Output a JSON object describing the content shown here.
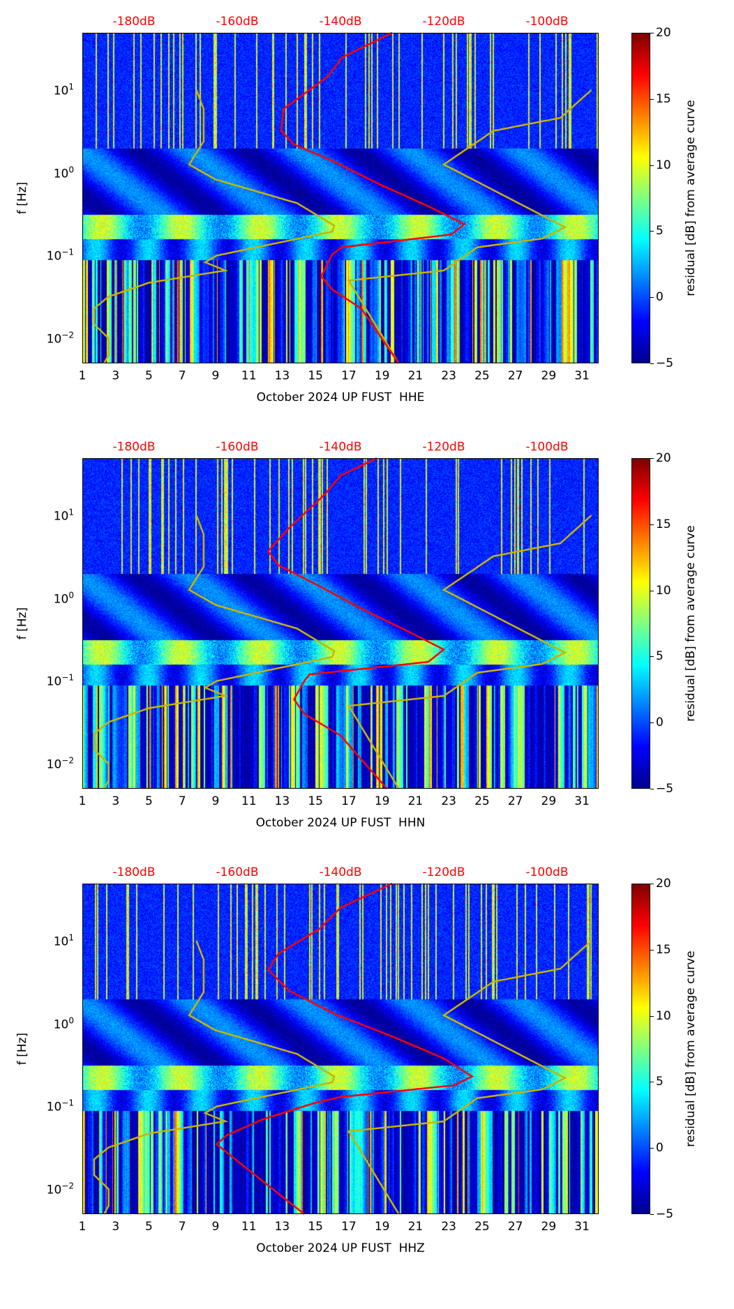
{
  "colors": {
    "mean_psd": "#ff0000",
    "noise_models": "#c8b400",
    "top_axis": "#ff0000"
  },
  "shared": {
    "ylabel": "f [Hz]",
    "colorbar_label": "residual [dB] from average curve",
    "colorbar_ticks": [
      "20",
      "15",
      "10",
      "5",
      "0",
      "−5"
    ],
    "colorbar_range": [
      -5,
      20
    ],
    "x_ticks": [
      "1",
      "3",
      "5",
      "7",
      "9",
      "11",
      "13",
      "15",
      "17",
      "19",
      "21",
      "23",
      "25",
      "27",
      "29",
      "31"
    ],
    "y_ticks": [
      {
        "base": "10",
        "exp": "1"
      },
      {
        "base": "10",
        "exp": "0"
      },
      {
        "base": "10",
        "exp": "−1"
      },
      {
        "base": "10",
        "exp": "−2"
      }
    ],
    "top_ticks": [
      "-180dB",
      "-160dB",
      "-140dB",
      "-120dB",
      "-100dB"
    ]
  },
  "chart_data": [
    {
      "type": "heatmap",
      "title": "",
      "xlabel": "October 2024 UP FUST  HHE",
      "ylabel": "f [Hz]",
      "x_range_days": [
        1,
        32
      ],
      "y_range_hz": [
        0.005,
        49
      ],
      "y_scale": "log",
      "top_axis_db_range": [
        -190,
        -90
      ],
      "mean_psd": [
        [
          -130,
          49
        ],
        [
          -139.7,
          24.6
        ],
        [
          -142.5,
          14.5
        ],
        [
          -151,
          5.9
        ],
        [
          -151.5,
          3.2
        ],
        [
          -149,
          2.2
        ],
        [
          -141.6,
          1.4
        ],
        [
          -132.3,
          0.72
        ],
        [
          -123.2,
          0.4
        ],
        [
          -116,
          0.24
        ],
        [
          -118.5,
          0.18
        ],
        [
          -139.7,
          0.126
        ],
        [
          -141.6,
          0.104
        ],
        [
          -143.7,
          0.056
        ],
        [
          -141.6,
          0.039
        ],
        [
          -136,
          0.023
        ],
        [
          -128.7,
          0.005
        ]
      ],
      "nlnm": [
        [
          -167.9,
          10
        ],
        [
          -166.5,
          5.9
        ],
        [
          -166.5,
          2.4
        ],
        [
          -169.3,
          1.26
        ],
        [
          -164.2,
          0.83
        ],
        [
          -148.4,
          0.43
        ],
        [
          -141.2,
          0.23
        ],
        [
          -141.6,
          0.195
        ],
        [
          -164,
          0.1
        ],
        [
          -166.2,
          0.083
        ],
        [
          -162.3,
          0.066
        ],
        [
          -177.1,
          0.047
        ],
        [
          -184.9,
          0.032
        ],
        [
          -187.7,
          0.023
        ],
        [
          -187.7,
          0.0148
        ],
        [
          -184.9,
          0.01
        ],
        [
          -184.9,
          0.0063
        ],
        [
          -185.8,
          0.005
        ]
      ],
      "nhnm": [
        [
          -91.4,
          10
        ],
        [
          -97.4,
          4.6
        ],
        [
          -110.4,
          3.2
        ],
        [
          -120,
          1.26
        ],
        [
          -96.5,
          0.22
        ],
        [
          -101,
          0.16
        ],
        [
          -113.5,
          0.126
        ],
        [
          -120,
          0.066
        ],
        [
          -138.4,
          0.05
        ],
        [
          -128.7,
          0.005
        ]
      ]
    },
    {
      "type": "heatmap",
      "title": "",
      "xlabel": "October 2024 UP FUST  HHN",
      "ylabel": "f [Hz]",
      "x_range_days": [
        1,
        32
      ],
      "y_range_hz": [
        0.005,
        49
      ],
      "y_scale": "log",
      "top_axis_db_range": [
        -190,
        -90
      ],
      "mean_psd": [
        [
          -133,
          49
        ],
        [
          -140,
          30
        ],
        [
          -143,
          18
        ],
        [
          -150,
          7
        ],
        [
          -154,
          3.7
        ],
        [
          -152,
          2.5
        ],
        [
          -145,
          1.5
        ],
        [
          -136,
          0.75
        ],
        [
          -127,
          0.4
        ],
        [
          -120,
          0.24
        ],
        [
          -123,
          0.17
        ],
        [
          -146,
          0.12
        ],
        [
          -147,
          0.1
        ],
        [
          -149,
          0.06
        ],
        [
          -147,
          0.04
        ],
        [
          -140,
          0.022
        ],
        [
          -131,
          0.005
        ]
      ],
      "nlnm": [
        [
          -167.9,
          10
        ],
        [
          -166.5,
          5.9
        ],
        [
          -166.5,
          2.4
        ],
        [
          -169.3,
          1.26
        ],
        [
          -164.2,
          0.83
        ],
        [
          -148.4,
          0.43
        ],
        [
          -141.2,
          0.23
        ],
        [
          -141.6,
          0.195
        ],
        [
          -164,
          0.1
        ],
        [
          -166.2,
          0.083
        ],
        [
          -162.3,
          0.066
        ],
        [
          -177.1,
          0.047
        ],
        [
          -184.9,
          0.032
        ],
        [
          -187.7,
          0.023
        ],
        [
          -187.7,
          0.0148
        ],
        [
          -184.9,
          0.01
        ],
        [
          -184.9,
          0.0063
        ],
        [
          -185.8,
          0.005
        ]
      ],
      "nhnm": [
        [
          -91.4,
          10
        ],
        [
          -97.4,
          4.6
        ],
        [
          -110.4,
          3.2
        ],
        [
          -120,
          1.26
        ],
        [
          -96.5,
          0.22
        ],
        [
          -101,
          0.16
        ],
        [
          -113.5,
          0.126
        ],
        [
          -120,
          0.066
        ],
        [
          -138.4,
          0.05
        ],
        [
          -128.7,
          0.005
        ]
      ]
    },
    {
      "type": "heatmap",
      "title": "",
      "xlabel": "October 2024 UP FUST  HHZ",
      "ylabel": "f [Hz]",
      "x_range_days": [
        1,
        32
      ],
      "y_range_hz": [
        0.005,
        49
      ],
      "y_scale": "log",
      "top_axis_db_range": [
        -190,
        -90
      ],
      "mean_psd": [
        [
          -130,
          49
        ],
        [
          -140,
          25
        ],
        [
          -144,
          14
        ],
        [
          -152,
          7
        ],
        [
          -154,
          4.5
        ],
        [
          -150,
          2.5
        ],
        [
          -141,
          1.3
        ],
        [
          -130,
          0.7
        ],
        [
          -120,
          0.38
        ],
        [
          -114.5,
          0.23
        ],
        [
          -118,
          0.18
        ],
        [
          -140,
          0.13
        ],
        [
          -145,
          0.11
        ],
        [
          -155,
          0.07
        ],
        [
          -162,
          0.045
        ],
        [
          -164,
          0.035
        ],
        [
          -160,
          0.022
        ],
        [
          -147,
          0.005
        ]
      ],
      "nlnm": [
        [
          -167.9,
          10
        ],
        [
          -166.5,
          5.9
        ],
        [
          -166.5,
          2.4
        ],
        [
          -169.3,
          1.26
        ],
        [
          -164.2,
          0.83
        ],
        [
          -148.4,
          0.43
        ],
        [
          -141.2,
          0.23
        ],
        [
          -141.6,
          0.195
        ],
        [
          -164,
          0.1
        ],
        [
          -166.2,
          0.083
        ],
        [
          -162.3,
          0.066
        ],
        [
          -177.1,
          0.047
        ],
        [
          -184.9,
          0.032
        ],
        [
          -187.7,
          0.023
        ],
        [
          -187.7,
          0.0148
        ],
        [
          -184.9,
          0.01
        ],
        [
          -184.9,
          0.0063
        ],
        [
          -185.8,
          0.005
        ]
      ],
      "nhnm": [
        [
          -91.4,
          10
        ],
        [
          -97.4,
          4.6
        ],
        [
          -110.4,
          3.2
        ],
        [
          -120,
          1.26
        ],
        [
          -96.5,
          0.22
        ],
        [
          -101,
          0.16
        ],
        [
          -113.5,
          0.126
        ],
        [
          -120,
          0.066
        ],
        [
          -138.4,
          0.05
        ],
        [
          -128.7,
          0.005
        ]
      ]
    }
  ]
}
